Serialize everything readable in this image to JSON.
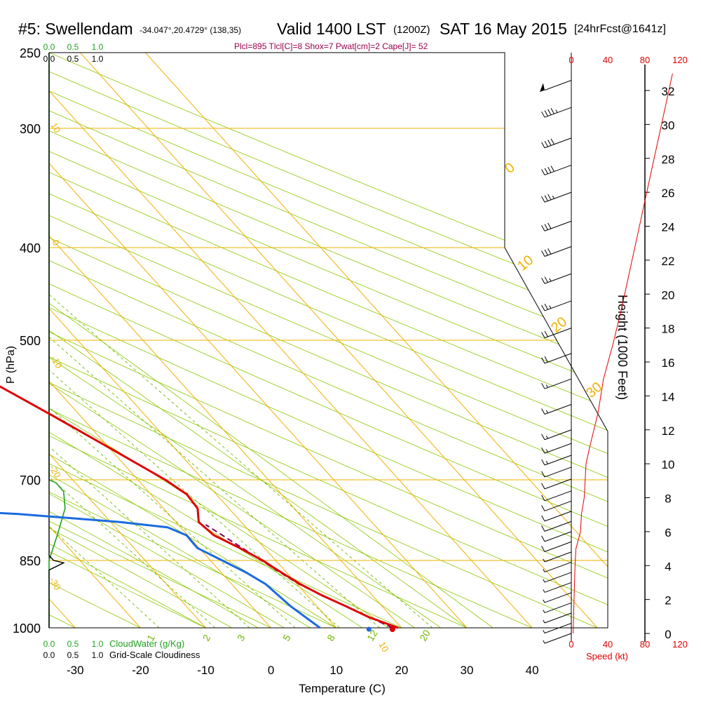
{
  "header": {
    "station": "#5: Swellendam",
    "coords": "-34.047°,20.4729° (138,35)",
    "valid": "Valid 1400 LST",
    "utc": "(1200Z)",
    "day": "SAT 16 May 2015",
    "forecast": "[24hrFcst@1641z]",
    "params": "Plcl=895 Tlcl[C]=8 Shox=7 Pwat[cm]=2 Cape[J]= 52"
  },
  "colors": {
    "temperature": "#e00000",
    "dewpoint": "#1a6be0",
    "isotherm": "#f0b000",
    "dry_adiabat": "#8cc800",
    "moist_adiabat": "#8cc800",
    "mixing_ratio": "#70b800",
    "parcel": "#7a0060",
    "cloud_water": "#20a020",
    "cloudiness": "#000000",
    "wind_speed": "#e00000",
    "params_text": "#99004c"
  },
  "chart_data": {
    "type": "skew-t log-p sounding",
    "xlabel": "Temperature (C)",
    "ylabel": "P (hPa)",
    "x_ticks": [
      -30,
      -20,
      -10,
      0,
      10,
      20,
      30,
      40
    ],
    "x_range": [
      -34,
      46
    ],
    "pressure_levels": [
      250,
      300,
      400,
      500,
      700,
      850,
      1000
    ],
    "y_range": [
      250,
      1000
    ],
    "y_scale": "log",
    "grid": true,
    "isotherm_labels": [
      "10",
      "0",
      "-10",
      "-20",
      "-30",
      "10",
      "0",
      "10",
      "20",
      "30"
    ],
    "mixing_ratio_labels": [
      "1",
      "2",
      "3",
      "5",
      "8",
      "12",
      "20"
    ],
    "temperature_profile": [
      {
        "p": 1000,
        "t": 19.5
      },
      {
        "p": 975,
        "t": 16.5
      },
      {
        "p": 950,
        "t": 14.5
      },
      {
        "p": 925,
        "t": 12.3
      },
      {
        "p": 900,
        "t": 10.5
      },
      {
        "p": 875,
        "t": 9.2
      },
      {
        "p": 850,
        "t": 8.0
      },
      {
        "p": 825,
        "t": 6.2
      },
      {
        "p": 800,
        "t": 4.0
      },
      {
        "p": 775,
        "t": 3.5
      },
      {
        "p": 750,
        "t": 5.2
      },
      {
        "p": 725,
        "t": 5.5
      },
      {
        "p": 700,
        "t": 4.2
      },
      {
        "p": 650,
        "t": 0.2
      },
      {
        "p": 600,
        "t": -4.2
      },
      {
        "p": 550,
        "t": -9.2
      },
      {
        "p": 500,
        "t": -14.7
      },
      {
        "p": 450,
        "t": -21.2
      },
      {
        "p": 400,
        "t": -28.5
      },
      {
        "p": 350,
        "t": -37.2
      },
      {
        "p": 300,
        "t": -47.0
      },
      {
        "p": 265,
        "t": -54.6
      }
    ],
    "dewpoint_profile": [
      {
        "p": 1000,
        "t": 7.5
      },
      {
        "p": 950,
        "t": 6.0
      },
      {
        "p": 900,
        "t": 5.2
      },
      {
        "p": 875,
        "t": 3.8
      },
      {
        "p": 850,
        "t": 1.8
      },
      {
        "p": 825,
        "t": -0.3
      },
      {
        "p": 800,
        "t": -0.2
      },
      {
        "p": 785,
        "t": -2.0
      },
      {
        "p": 775,
        "t": -8.5
      },
      {
        "p": 760,
        "t": -23.0
      },
      {
        "p": 745,
        "t": -47.0
      },
      {
        "p": 730,
        "t": -56.3
      },
      {
        "p": 715,
        "t": -55.0
      },
      {
        "p": 700,
        "t": -49.5
      },
      {
        "p": 680,
        "t": -47.2
      },
      {
        "p": 660,
        "t": -45.0
      },
      {
        "p": 640,
        "t": -44.4
      },
      {
        "p": 600,
        "t": -39.6
      },
      {
        "p": 560,
        "t": -33.5
      },
      {
        "p": 520,
        "t": -26.5
      },
      {
        "p": 500,
        "t": -25.2
      },
      {
        "p": 470,
        "t": -24.8
      },
      {
        "p": 450,
        "t": -26.5
      },
      {
        "p": 420,
        "t": -32.0
      },
      {
        "p": 380,
        "t": -40.0
      },
      {
        "p": 350,
        "t": -45.0
      },
      {
        "p": 300,
        "t": -48.8
      },
      {
        "p": 265,
        "t": -50.8
      }
    ],
    "parcel_profile": [
      {
        "p": 1000,
        "t": 18.6
      },
      {
        "p": 950,
        "t": 14.5
      },
      {
        "p": 925,
        "t": 12.3
      },
      {
        "p": 900,
        "t": 10.3
      },
      {
        "p": 875,
        "t": 9.0
      },
      {
        "p": 850,
        "t": 7.8
      },
      {
        "p": 825,
        "t": 6.6
      },
      {
        "p": 800,
        "t": 5.3
      },
      {
        "p": 780,
        "t": 4.2
      }
    ],
    "surface_temperature": 18.6,
    "surface_dewpoint": 15.0,
    "cloud_water_label": "CloudWater (g/Kg)",
    "cloud_water_ticks": [
      "0.0",
      "0.5",
      "1.0"
    ],
    "cloud_water_profile": [
      {
        "p": 1000,
        "v": 0.0
      },
      {
        "p": 900,
        "v": 0.0
      },
      {
        "p": 850,
        "v": 0.0
      },
      {
        "p": 800,
        "v": 0.18
      },
      {
        "p": 750,
        "v": 0.35
      },
      {
        "p": 720,
        "v": 0.32
      },
      {
        "p": 705,
        "v": 0.15
      },
      {
        "p": 700,
        "v": 0.0
      },
      {
        "p": 250,
        "v": 0.0
      }
    ],
    "cloudiness_label": "Grid-Scale Cloudiness",
    "cloudiness_ticks": [
      "0.0",
      "0.5",
      "1.0"
    ],
    "cloudiness_profile": [
      {
        "p": 1000,
        "v": 0.0
      },
      {
        "p": 900,
        "v": 0.0
      },
      {
        "p": 870,
        "v": 0.0
      },
      {
        "p": 855,
        "v": 0.32
      },
      {
        "p": 850,
        "v": 0.1
      },
      {
        "p": 840,
        "v": 0.0
      },
      {
        "p": 250,
        "v": 0.0
      }
    ],
    "wind_speed_label": "Speed (kt)",
    "wind_speed_ticks": [
      0,
      40,
      80,
      120
    ],
    "wind_speed_profile": [
      {
        "h": 0,
        "v": 2
      },
      {
        "h": 2,
        "v": 3
      },
      {
        "h": 4,
        "v": 4
      },
      {
        "h": 5,
        "v": 5
      },
      {
        "h": 6,
        "v": 10
      },
      {
        "h": 7,
        "v": 11
      },
      {
        "h": 8,
        "v": 14
      },
      {
        "h": 9,
        "v": 15
      },
      {
        "h": 10,
        "v": 16
      },
      {
        "h": 11,
        "v": 20
      },
      {
        "h": 13,
        "v": 29
      },
      {
        "h": 15,
        "v": 35
      },
      {
        "h": 17,
        "v": 45
      },
      {
        "h": 19,
        "v": 54
      },
      {
        "h": 21,
        "v": 62
      },
      {
        "h": 23,
        "v": 70
      },
      {
        "h": 25,
        "v": 78
      },
      {
        "h": 27,
        "v": 86
      },
      {
        "h": 29,
        "v": 94
      },
      {
        "h": 31,
        "v": 102
      },
      {
        "h": 32,
        "v": 106
      },
      {
        "h": 33,
        "v": 110
      }
    ],
    "height_label": "Height (1000 Feet)",
    "height_ticks": [
      0,
      2,
      4,
      6,
      8,
      10,
      12,
      14,
      16,
      18,
      20,
      22,
      24,
      26,
      28,
      30,
      32
    ],
    "height_range": [
      0,
      34
    ],
    "wind_barbs": [
      {
        "h": 32.6,
        "speed": 50
      },
      {
        "h": 31.0,
        "speed": 45
      },
      {
        "h": 29.2,
        "speed": 40
      },
      {
        "h": 27.6,
        "speed": 40
      },
      {
        "h": 26.0,
        "speed": 35
      },
      {
        "h": 24.3,
        "speed": 30
      },
      {
        "h": 22.8,
        "speed": 30
      },
      {
        "h": 21.2,
        "speed": 25
      },
      {
        "h": 19.6,
        "speed": 25
      },
      {
        "h": 18.0,
        "speed": 20
      },
      {
        "h": 16.5,
        "speed": 20
      },
      {
        "h": 15.0,
        "speed": 15
      },
      {
        "h": 13.5,
        "speed": 15
      },
      {
        "h": 12.0,
        "speed": 15
      },
      {
        "h": 11.2,
        "speed": 15
      },
      {
        "h": 10.5,
        "speed": 15
      },
      {
        "h": 9.8,
        "speed": 10
      },
      {
        "h": 9.1,
        "speed": 10
      },
      {
        "h": 8.4,
        "speed": 10
      },
      {
        "h": 7.8,
        "speed": 10
      },
      {
        "h": 7.2,
        "speed": 10
      },
      {
        "h": 6.6,
        "speed": 10
      },
      {
        "h": 6.0,
        "speed": 10
      },
      {
        "h": 5.4,
        "speed": 10
      },
      {
        "h": 4.8,
        "speed": 5
      },
      {
        "h": 4.2,
        "speed": 5
      },
      {
        "h": 3.6,
        "speed": 5
      },
      {
        "h": 3.0,
        "speed": 5
      },
      {
        "h": 2.4,
        "speed": 5
      },
      {
        "h": 1.8,
        "speed": 5
      },
      {
        "h": 1.2,
        "speed": 5
      },
      {
        "h": 0.6,
        "speed": 5
      },
      {
        "h": 0.0,
        "speed": 5
      }
    ]
  }
}
